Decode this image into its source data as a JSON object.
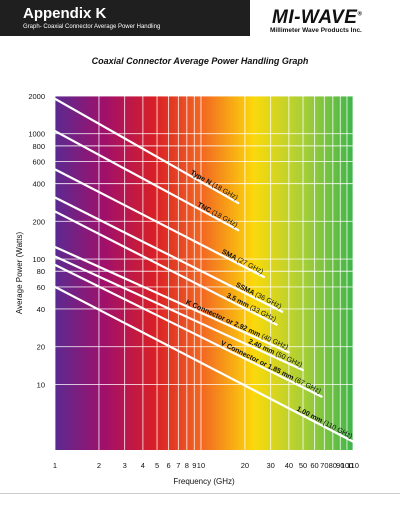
{
  "header": {
    "title": "Appendix K",
    "subtitle": "Graph- Coaxial Connector Average Power Handling",
    "logo": "MI-WAVE",
    "logo_mark": "®",
    "logo_sub": "Millimeter Wave Products Inc."
  },
  "colors": {
    "header_bg": "#1f1f1f",
    "gradient": [
      "#5b2a91",
      "#a0106b",
      "#d81f26",
      "#f36b21",
      "#fbd90b",
      "#a8cf38",
      "#3fb54a"
    ],
    "line": "#ffffff"
  },
  "chart_data": {
    "type": "line",
    "title": "Coaxial Connector Average Power Handling Graph",
    "xlabel": "Frequency (GHz)",
    "ylabel": "Average Power (Watts)",
    "x_scale": "log",
    "y_scale": "log",
    "xlim": [
      1,
      110
    ],
    "ylim": [
      3,
      2000
    ],
    "x_ticks": [
      1,
      2,
      3,
      4,
      5,
      6,
      7,
      8,
      9,
      10,
      20,
      30,
      40,
      50,
      60,
      70,
      80,
      90,
      100,
      110
    ],
    "y_ticks": [
      2000,
      1000,
      800,
      600,
      400,
      200,
      100,
      80,
      60,
      40,
      20,
      10
    ],
    "grid": true,
    "series": [
      {
        "name": "Type N",
        "note": "(18 GHz)",
        "x": [
          1,
          18
        ],
        "y": [
          1900,
          280
        ]
      },
      {
        "name": "TNC",
        "note": "(18 GHz)",
        "x": [
          1,
          18
        ],
        "y": [
          1050,
          170
        ]
      },
      {
        "name": "SMA",
        "note": "(27 GHz)",
        "x": [
          1,
          27
        ],
        "y": [
          520,
          72
        ]
      },
      {
        "name": "SSMA",
        "note": "(36 GHz)",
        "x": [
          1,
          36
        ],
        "y": [
          310,
          38
        ]
      },
      {
        "name": "3.5 mm",
        "note": "(33 GHz)",
        "x": [
          1,
          33
        ],
        "y": [
          240,
          30
        ]
      },
      {
        "name": "K Connector or 2.92 mm",
        "note": "(40 GHz)",
        "x": [
          1,
          40
        ],
        "y": [
          125,
          18
        ]
      },
      {
        "name": "2.40 mm",
        "note": "(50 GHz)",
        "x": [
          1,
          50
        ],
        "y": [
          105,
          13
        ]
      },
      {
        "name": "V Connector or 1.85 mm",
        "note": "(67 GHz)",
        "x": [
          1,
          67
        ],
        "y": [
          90,
          8
        ]
      },
      {
        "name": "1.00 mm",
        "note": "(110 GHz)",
        "x": [
          1,
          110
        ],
        "y": [
          60,
          3.5
        ]
      }
    ]
  }
}
